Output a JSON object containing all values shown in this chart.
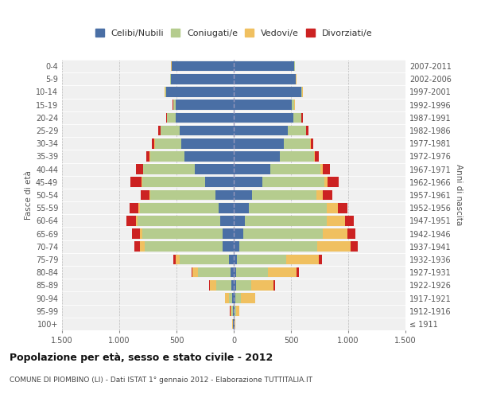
{
  "age_groups": [
    "100+",
    "95-99",
    "90-94",
    "85-89",
    "80-84",
    "75-79",
    "70-74",
    "65-69",
    "60-64",
    "55-59",
    "50-54",
    "45-49",
    "40-44",
    "35-39",
    "30-34",
    "25-29",
    "20-24",
    "15-19",
    "10-14",
    "5-9",
    "0-4"
  ],
  "birth_years": [
    "≤ 1911",
    "1912-1916",
    "1917-1921",
    "1922-1926",
    "1927-1931",
    "1932-1936",
    "1937-1941",
    "1942-1946",
    "1947-1951",
    "1952-1956",
    "1957-1961",
    "1962-1966",
    "1967-1971",
    "1972-1976",
    "1977-1981",
    "1982-1986",
    "1987-1991",
    "1992-1996",
    "1997-2001",
    "2002-2006",
    "2007-2011"
  ],
  "males": {
    "celibi": [
      5,
      10,
      15,
      20,
      30,
      40,
      100,
      100,
      120,
      130,
      160,
      250,
      340,
      430,
      460,
      470,
      510,
      510,
      590,
      550,
      540
    ],
    "coniugati": [
      5,
      10,
      30,
      130,
      280,
      430,
      680,
      700,
      720,
      690,
      570,
      550,
      450,
      300,
      230,
      170,
      70,
      20,
      10,
      5,
      5
    ],
    "vedovi": [
      2,
      10,
      30,
      60,
      50,
      40,
      40,
      20,
      15,
      10,
      5,
      5,
      5,
      3,
      2,
      2,
      2,
      1,
      1,
      1,
      1
    ],
    "divorziati": [
      1,
      2,
      3,
      5,
      10,
      20,
      50,
      70,
      80,
      80,
      80,
      100,
      60,
      30,
      20,
      15,
      10,
      5,
      3,
      2,
      1
    ]
  },
  "females": {
    "nubili": [
      5,
      10,
      15,
      20,
      20,
      30,
      50,
      80,
      100,
      130,
      160,
      250,
      320,
      400,
      440,
      470,
      520,
      510,
      590,
      540,
      530
    ],
    "coniugate": [
      3,
      10,
      50,
      130,
      280,
      430,
      680,
      700,
      710,
      680,
      560,
      540,
      440,
      300,
      230,
      160,
      70,
      20,
      10,
      5,
      5
    ],
    "vedove": [
      5,
      30,
      120,
      200,
      250,
      280,
      290,
      210,
      160,
      100,
      60,
      30,
      20,
      10,
      5,
      5,
      3,
      2,
      1,
      1,
      1
    ],
    "divorziate": [
      1,
      2,
      5,
      10,
      20,
      30,
      60,
      70,
      80,
      80,
      80,
      100,
      60,
      30,
      20,
      15,
      10,
      5,
      3,
      2,
      1
    ]
  },
  "colors": {
    "celibi": "#4a6fa5",
    "coniugati": "#b5cc8e",
    "vedovi": "#f0c060",
    "divorziati": "#cc2222"
  },
  "legend_labels": [
    "Celibi/Nubili",
    "Coniugati/e",
    "Vedovi/e",
    "Divorziati/e"
  ],
  "title": "Popolazione per età, sesso e stato civile - 2012",
  "subtitle": "COMUNE DI PIOMBINO (LI) - Dati ISTAT 1° gennaio 2012 - Elaborazione TUTTITALIA.IT",
  "ylabel_left": "Fasce di età",
  "ylabel_right": "Anni di nascita",
  "xlim": 1500,
  "background_color": "#ffffff",
  "plot_bg": "#f0f0f0",
  "grid_color": "#cccccc"
}
